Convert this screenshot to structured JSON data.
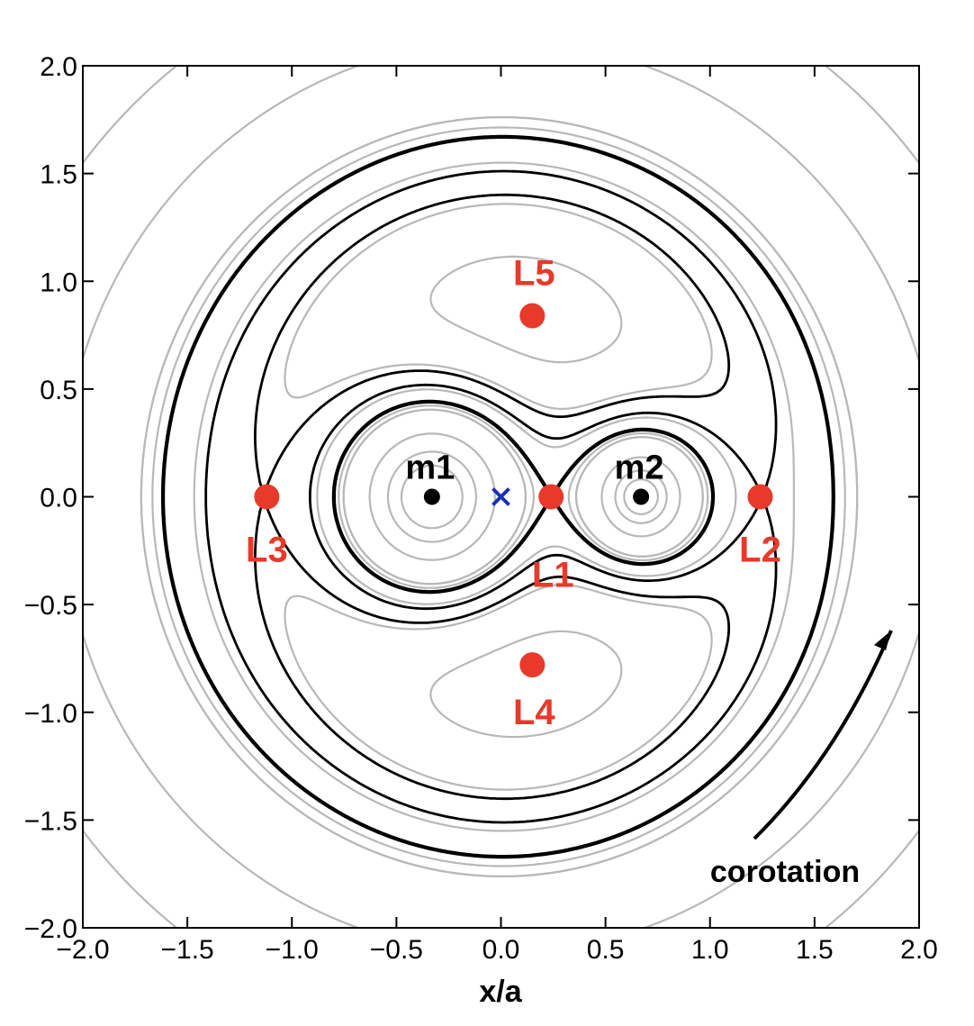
{
  "chart_data": {
    "type": "contour",
    "xlabel": "x/a",
    "ylabel": "",
    "xlim": [
      -2.0,
      2.0
    ],
    "ylim": [
      -2.0,
      2.0
    ],
    "xticks": [
      -2.0,
      -1.5,
      -1.0,
      -0.5,
      0.0,
      0.5,
      1.0,
      1.5,
      2.0
    ],
    "yticks": [
      -2.0,
      -1.5,
      -1.0,
      -0.5,
      0.0,
      0.5,
      1.0,
      1.5,
      2.0
    ],
    "xtick_labels": [
      "−2.0",
      "−1.5",
      "−1.0",
      "−0.5",
      "0.0",
      "0.5",
      "1.0",
      "1.5",
      "2.0"
    ],
    "ytick_labels": [
      "−2.0",
      "−1.5",
      "−1.0",
      "−0.5",
      "0.0",
      "0.5",
      "1.0",
      "1.5",
      "2.0"
    ],
    "grid": false,
    "masses": [
      {
        "label": "m1",
        "x": -0.33,
        "y": 0.0
      },
      {
        "label": "m2",
        "x": 0.67,
        "y": 0.0
      }
    ],
    "center_of_mass": {
      "x": 0.0,
      "y": 0.0
    },
    "lagrange_points": [
      {
        "label": "L1",
        "x": 0.24,
        "y": 0.0
      },
      {
        "label": "L2",
        "x": 1.24,
        "y": 0.0
      },
      {
        "label": "L3",
        "x": -1.12,
        "y": 0.0
      },
      {
        "label": "L4",
        "x": 0.15,
        "y": -0.78
      },
      {
        "label": "L5",
        "x": 0.15,
        "y": 0.84
      }
    ],
    "annotation": "corotation",
    "colors": {
      "lagrange": "#e8392a",
      "center_of_mass": "#1a2fb8",
      "critical_contour": "#000000",
      "other_contour": "#b8b8b8"
    }
  }
}
